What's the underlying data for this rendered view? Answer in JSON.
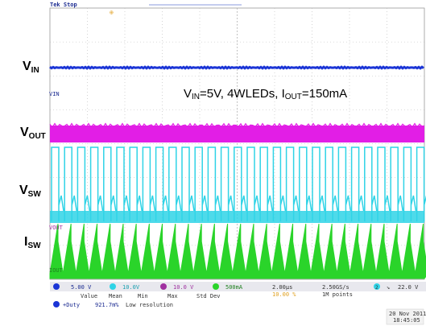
{
  "header": {
    "status": "Tek Stop"
  },
  "annotation": {
    "condition": {
      "vin_label": "V",
      "vin_sub": "IN",
      "vin_value": "=5V, 4WLEDs, I",
      "iout_sub": "OUT",
      "iout_value": "=150mA"
    }
  },
  "traces": [
    {
      "key": "vin",
      "label_main": "V",
      "label_sub": "IN",
      "marker": "VIN",
      "color": "#1b35d6"
    },
    {
      "key": "vout",
      "label_main": "V",
      "label_sub": "OUT",
      "marker": "VOUT",
      "color": "#e21ee6"
    },
    {
      "key": "vsw",
      "label_main": "V",
      "label_sub": "SW",
      "marker": "",
      "color": "#2fd3e6"
    },
    {
      "key": "isw",
      "label_main": "I",
      "label_sub": "SW",
      "marker": "IOUT",
      "color": "#2ad42a"
    }
  ],
  "channel_bar": {
    "ch1": "5.00 V",
    "ch2": "10.0V",
    "ch3": "10.0 V",
    "ch4": "500mA",
    "timebase": "2.00µs",
    "trigger_pos": "10.00 %",
    "sample_rate": "2.50GS/s",
    "record": "1M points",
    "trigger_ch": "2",
    "trigger_level": "22.0 V"
  },
  "measurement": {
    "headers": [
      "Value",
      "Mean",
      "Min",
      "Max",
      "Std Dev"
    ],
    "name": "+Duty",
    "value": "921.7m%",
    "note": "Low resolution"
  },
  "datetime": {
    "date": "20 Nov 2011",
    "time": "18:45:05"
  },
  "colors": {
    "grid": "#b8b8b8",
    "background": "#ffffff",
    "bar": "#e8e8ee"
  }
}
